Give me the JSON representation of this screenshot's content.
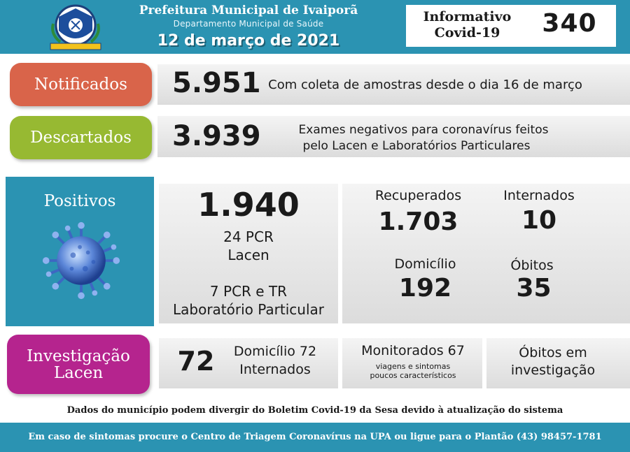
{
  "header": {
    "title": "Prefeitura Municipal de Ivaiporã",
    "subtitle": "Departamento Municipal de Saúde",
    "date": "12 de março de 2021",
    "info_title": "Informativo Covid-19",
    "info_number": "340"
  },
  "notificados": {
    "label": "Notificados",
    "value": "5.951",
    "description": "Com coleta de amostras desde o dia 16 de março",
    "color": "#d9644a"
  },
  "descartados": {
    "label": "Descartados",
    "value": "3.939",
    "description_line1": "Exames negativos para coronavírus feitos",
    "description_line2": "pelo Lacen e Laboratórios Particulares",
    "color": "#97b932"
  },
  "positivos": {
    "label": "Positivos",
    "value": "1.940",
    "pcr_lacen_line1": "24 PCR",
    "pcr_lacen_line2": "Lacen",
    "particular_line1": "7 PCR e TR",
    "particular_line2": "Laboratório Particular",
    "recuperados_label": "Recuperados",
    "recuperados_value": "1.703",
    "internados_label": "Internados",
    "internados_value": "10",
    "domicilio_label": "Domicílio",
    "domicilio_value": "192",
    "obitos_label": "Óbitos",
    "obitos_value": "35",
    "color": "#2b93b2",
    "icon": "virus-icon"
  },
  "investigacao": {
    "label_line1": "Investigação",
    "label_line2": "Lacen",
    "value": "72",
    "domicilio": "Domicílio 72",
    "internados": "Internados",
    "monitorados": "Monitorados 67",
    "monitorados_note_line1": "viagens e sintomas",
    "monitorados_note_line2": "poucos característicos",
    "obitos_line1": "Óbitos em",
    "obitos_line2": "investigação",
    "color": "#b5248e"
  },
  "footer": {
    "note": "Dados do município podem divergir do Boletim Covid-19 da Sesa devido à atualização do sistema",
    "contact": "Em caso de sintomas procure o Centro de Triagem Coronavírus na UPA ou ligue para o Plantão (43) 98457-1781"
  }
}
